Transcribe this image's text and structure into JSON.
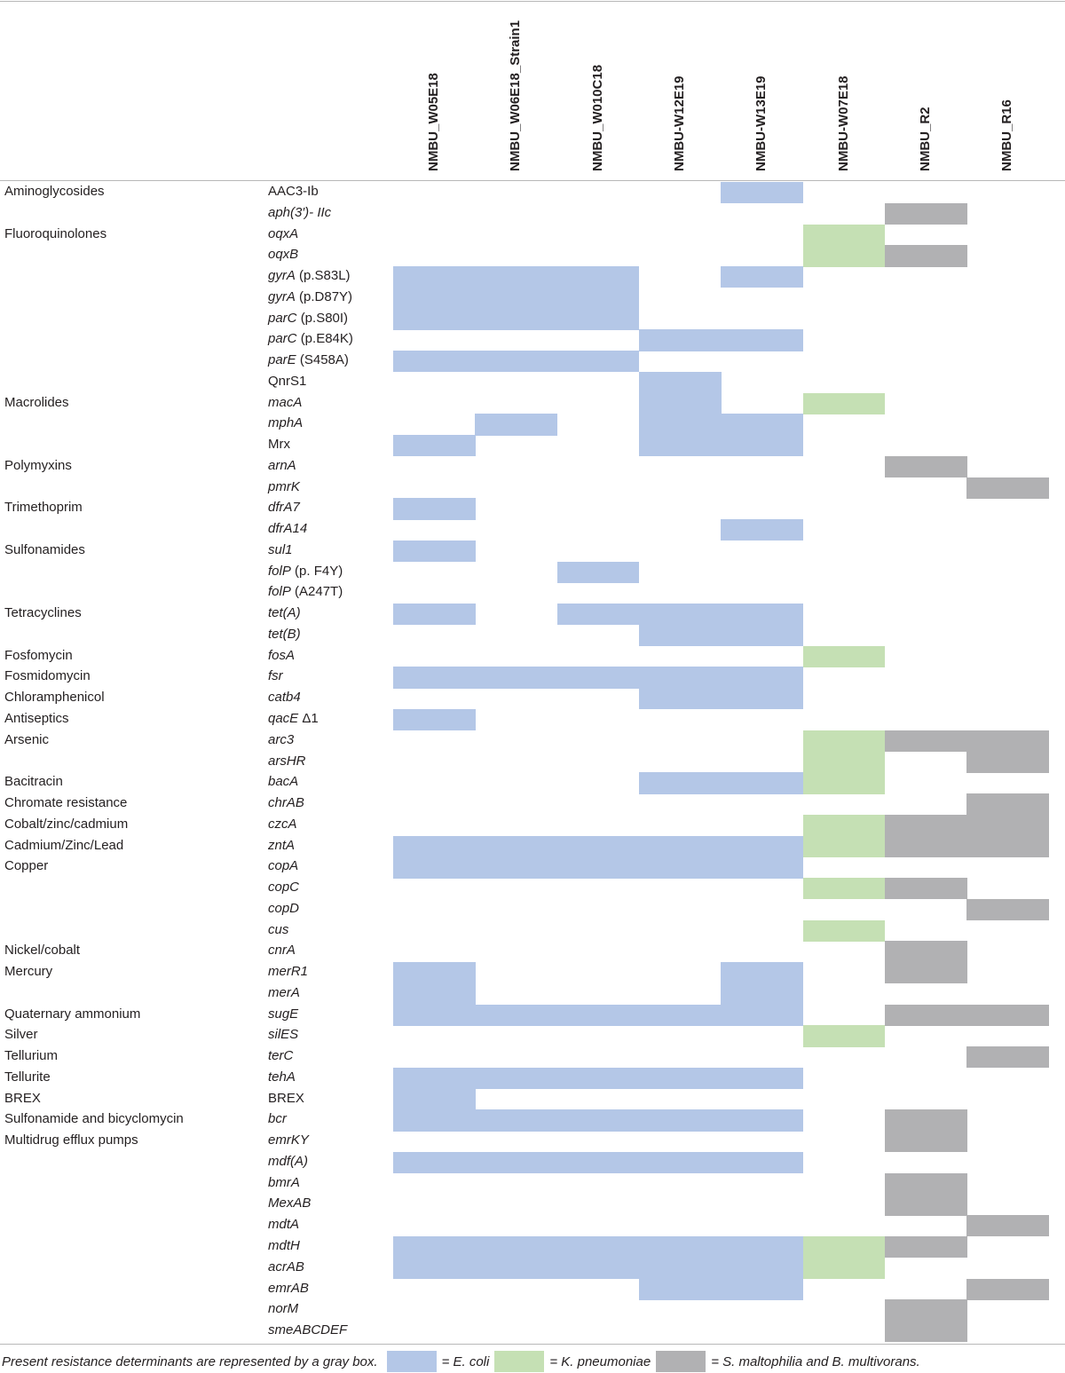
{
  "columns": [
    {
      "name": "NMBU_W05E18",
      "color": "#b4c7e7"
    },
    {
      "name": "NMBU_W06E18_Strain1",
      "color": "#b4c7e7"
    },
    {
      "name": "NMBU_W010C18",
      "color": "#b4c7e7"
    },
    {
      "name": "NMBU-W12E19",
      "color": "#b4c7e7"
    },
    {
      "name": "NMBU-W13E19",
      "color": "#b4c7e7"
    },
    {
      "name": "NMBU-W07E18",
      "color": "#c5e0b4"
    },
    {
      "name": "NMBU_R2",
      "color": "#b1b1b3"
    },
    {
      "name": "NMBU_R16",
      "color": "#b1b1b3"
    }
  ],
  "rows": [
    {
      "class": "Aminoglycosides",
      "gene": "AAC3-Ib",
      "italic": false,
      "present": [
        0,
        0,
        0,
        0,
        1,
        0,
        0,
        0
      ]
    },
    {
      "gene": "aph(3′)- IIc",
      "italic": true,
      "present": [
        0,
        0,
        0,
        0,
        0,
        0,
        1,
        0
      ]
    },
    {
      "class": "Fluoroquinolones",
      "gene": "oqxA",
      "italic": true,
      "present": [
        0,
        0,
        0,
        0,
        0,
        1,
        0,
        0
      ]
    },
    {
      "gene": "oqxB",
      "italic": true,
      "present": [
        0,
        0,
        0,
        0,
        0,
        1,
        1,
        0
      ]
    },
    {
      "gene": "gyrA",
      "detail": "(p.S83L)",
      "italic": true,
      "present": [
        1,
        1,
        1,
        0,
        1,
        0,
        0,
        0
      ]
    },
    {
      "gene": "gyrA",
      "detail": "(p.D87Y)",
      "italic": true,
      "present": [
        1,
        1,
        1,
        0,
        0,
        0,
        0,
        0
      ]
    },
    {
      "gene": "parC",
      "detail": "(p.S80I)",
      "italic": true,
      "present": [
        1,
        1,
        1,
        0,
        0,
        0,
        0,
        0
      ]
    },
    {
      "gene": "parC",
      "detail": "(p.E84K)",
      "italic": true,
      "present": [
        0,
        0,
        0,
        1,
        1,
        0,
        0,
        0
      ]
    },
    {
      "gene": "parE",
      "detail": "(S458A)",
      "italic": true,
      "present": [
        1,
        1,
        1,
        0,
        0,
        0,
        0,
        0
      ]
    },
    {
      "gene": "QnrS1",
      "italic": false,
      "present": [
        0,
        0,
        0,
        1,
        0,
        0,
        0,
        0
      ]
    },
    {
      "class": "Macrolides",
      "gene": "macA",
      "italic": true,
      "present": [
        0,
        0,
        0,
        1,
        0,
        1,
        0,
        0
      ]
    },
    {
      "gene": "mphA",
      "italic": true,
      "present": [
        0,
        1,
        0,
        1,
        1,
        0,
        0,
        0
      ]
    },
    {
      "gene": "Mrx",
      "italic": false,
      "present": [
        1,
        0,
        0,
        1,
        1,
        0,
        0,
        0
      ]
    },
    {
      "class": "Polymyxins",
      "gene": "arnA",
      "italic": true,
      "present": [
        0,
        0,
        0,
        0,
        0,
        0,
        1,
        0
      ]
    },
    {
      "gene": "pmrK",
      "italic": true,
      "present": [
        0,
        0,
        0,
        0,
        0,
        0,
        0,
        1
      ]
    },
    {
      "class": "Trimethoprim",
      "gene": "dfrA7",
      "italic": true,
      "present": [
        1,
        0,
        0,
        0,
        0,
        0,
        0,
        0
      ]
    },
    {
      "gene": "dfrA14",
      "italic": true,
      "present": [
        0,
        0,
        0,
        0,
        1,
        0,
        0,
        0
      ]
    },
    {
      "class": "Sulfonamides",
      "gene": "sul1",
      "italic": true,
      "present": [
        1,
        0,
        0,
        0,
        0,
        0,
        0,
        0
      ]
    },
    {
      "gene": "folP",
      "detail": "(p. F4Y)",
      "italic": true,
      "present": [
        0,
        0,
        1,
        0,
        0,
        0,
        0,
        0
      ]
    },
    {
      "gene": "folP",
      "detail": "(A247T)",
      "italic": true,
      "present": [
        0,
        0,
        0,
        0,
        0,
        0,
        0,
        0
      ]
    },
    {
      "class": "Tetracyclines",
      "gene": "tet(A)",
      "italic": true,
      "present": [
        1,
        0,
        1,
        1,
        1,
        0,
        0,
        0
      ]
    },
    {
      "gene": "tet(B)",
      "italic": true,
      "present": [
        0,
        0,
        0,
        1,
        1,
        0,
        0,
        0
      ]
    },
    {
      "class": "Fosfomycin",
      "gene": "fosA",
      "italic": true,
      "present": [
        0,
        0,
        0,
        0,
        0,
        1,
        0,
        0
      ]
    },
    {
      "class": "Fosmidomycin",
      "gene": "fsr",
      "italic": true,
      "present": [
        1,
        1,
        1,
        1,
        1,
        0,
        0,
        0
      ]
    },
    {
      "class": "Chloramphenicol",
      "gene": "catb4",
      "italic": true,
      "present": [
        0,
        0,
        0,
        1,
        1,
        0,
        0,
        0
      ]
    },
    {
      "class": "Antiseptics",
      "gene": "qacE",
      "detail": "Δ1",
      "italic": true,
      "present": [
        1,
        0,
        0,
        0,
        0,
        0,
        0,
        0
      ]
    },
    {
      "class": "Arsenic",
      "gene": "arc3",
      "italic": true,
      "present": [
        0,
        0,
        0,
        0,
        0,
        1,
        1,
        1
      ]
    },
    {
      "gene": "arsHR",
      "italic": true,
      "present": [
        0,
        0,
        0,
        0,
        0,
        1,
        0,
        1
      ]
    },
    {
      "class": "Bacitracin",
      "gene": "bacA",
      "italic": true,
      "present": [
        0,
        0,
        0,
        1,
        1,
        1,
        0,
        0
      ]
    },
    {
      "class": "Chromate resistance",
      "gene": "chrAB",
      "italic": true,
      "present": [
        0,
        0,
        0,
        0,
        0,
        0,
        0,
        1
      ]
    },
    {
      "class": "Cobalt/zinc/cadmium",
      "gene": "czcA",
      "italic": true,
      "present": [
        0,
        0,
        0,
        0,
        0,
        1,
        1,
        1
      ]
    },
    {
      "class": "Cadmium/Zinc/Lead",
      "gene": "zntA",
      "italic": true,
      "present": [
        1,
        1,
        1,
        1,
        1,
        1,
        1,
        1
      ]
    },
    {
      "class": "Copper",
      "gene": "copA",
      "italic": true,
      "present": [
        1,
        1,
        1,
        1,
        1,
        0,
        0,
        0
      ]
    },
    {
      "gene": "copC",
      "italic": true,
      "present": [
        0,
        0,
        0,
        0,
        0,
        1,
        1,
        0
      ]
    },
    {
      "gene": "copD",
      "italic": true,
      "present": [
        0,
        0,
        0,
        0,
        0,
        0,
        0,
        1
      ]
    },
    {
      "gene": "cus",
      "italic": true,
      "present": [
        0,
        0,
        0,
        0,
        0,
        1,
        0,
        0
      ]
    },
    {
      "class": "Nickel/cobalt",
      "gene": "cnrA",
      "italic": true,
      "present": [
        0,
        0,
        0,
        0,
        0,
        0,
        1,
        0
      ]
    },
    {
      "class": "Mercury",
      "gene": "merR1",
      "italic": true,
      "present": [
        1,
        0,
        0,
        0,
        1,
        0,
        1,
        0
      ]
    },
    {
      "gene": "merA",
      "italic": true,
      "present": [
        1,
        0,
        0,
        0,
        1,
        0,
        0,
        0
      ]
    },
    {
      "class": "Quaternary ammonium",
      "gene": "sugE",
      "italic": true,
      "present": [
        1,
        1,
        1,
        1,
        1,
        0,
        1,
        1
      ]
    },
    {
      "class": "Silver",
      "gene": "silES",
      "italic": true,
      "present": [
        0,
        0,
        0,
        0,
        0,
        1,
        0,
        0
      ]
    },
    {
      "class": "Tellurium",
      "gene": "terC",
      "italic": true,
      "present": [
        0,
        0,
        0,
        0,
        0,
        0,
        0,
        1
      ]
    },
    {
      "class": "Tellurite",
      "gene": "tehA",
      "italic": true,
      "present": [
        1,
        1,
        1,
        1,
        1,
        0,
        0,
        0
      ]
    },
    {
      "class": "BREX",
      "gene": "BREX",
      "italic": false,
      "present": [
        1,
        0,
        0,
        0,
        0,
        0,
        0,
        0
      ]
    },
    {
      "class": "Sulfonamide and bicyclomycin",
      "gene": "bcr",
      "italic": true,
      "present": [
        1,
        1,
        1,
        1,
        1,
        0,
        1,
        0
      ]
    },
    {
      "class": "Multidrug efflux pumps",
      "gene": "emrKY",
      "italic": true,
      "present": [
        0,
        0,
        0,
        0,
        0,
        0,
        1,
        0
      ]
    },
    {
      "gene": "mdf(A)",
      "italic": true,
      "present": [
        1,
        1,
        1,
        1,
        1,
        0,
        0,
        0
      ]
    },
    {
      "gene": "bmrA",
      "italic": true,
      "present": [
        0,
        0,
        0,
        0,
        0,
        0,
        1,
        0
      ]
    },
    {
      "gene": "MexAB",
      "italic": true,
      "present": [
        0,
        0,
        0,
        0,
        0,
        0,
        1,
        0
      ]
    },
    {
      "gene": "mdtA",
      "italic": true,
      "present": [
        0,
        0,
        0,
        0,
        0,
        0,
        0,
        1
      ]
    },
    {
      "gene": "mdtH",
      "italic": true,
      "present": [
        1,
        1,
        1,
        1,
        1,
        1,
        1,
        0
      ]
    },
    {
      "gene": "acrAB",
      "italic": true,
      "present": [
        1,
        1,
        1,
        1,
        1,
        1,
        0,
        0
      ]
    },
    {
      "gene": "emrAB",
      "italic": true,
      "present": [
        0,
        0,
        0,
        1,
        1,
        0,
        0,
        1
      ]
    },
    {
      "gene": "norM",
      "italic": true,
      "present": [
        0,
        0,
        0,
        0,
        0,
        0,
        1,
        0
      ]
    },
    {
      "gene": "smeABCDEF",
      "italic": true,
      "present": [
        0,
        0,
        0,
        0,
        0,
        0,
        1,
        0
      ]
    }
  ],
  "footnote": {
    "note": "Present resistance determinants are represented by a gray box.",
    "legend": [
      {
        "label": "= E. coli",
        "color": "#b4c7e7"
      },
      {
        "label": "= K. pneumoniae",
        "color": "#c5e0b4"
      },
      {
        "label": "= S. maltophilia and B. multivorans.",
        "color": "#b1b1b3"
      }
    ]
  }
}
